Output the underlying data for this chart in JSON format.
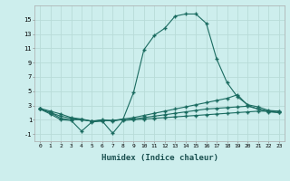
{
  "title": "",
  "xlabel": "Humidex (Indice chaleur)",
  "background_color": "#cdeeed",
  "grid_color": "#b8dbd8",
  "line_color": "#1a6b60",
  "xlim": [
    -0.5,
    23.5
  ],
  "ylim": [
    -2,
    17
  ],
  "xticks": [
    0,
    1,
    2,
    3,
    4,
    5,
    6,
    7,
    8,
    9,
    10,
    11,
    12,
    13,
    14,
    15,
    16,
    17,
    18,
    19,
    20,
    21,
    22,
    23
  ],
  "yticks": [
    -1,
    1,
    3,
    5,
    7,
    9,
    11,
    13,
    15
  ],
  "series1_x": [
    0,
    1,
    2,
    3,
    4,
    5,
    6,
    7,
    8,
    9,
    10,
    11,
    12,
    13,
    14,
    15,
    16,
    17,
    18,
    19,
    20,
    21,
    22,
    23
  ],
  "series1_y": [
    2.6,
    2.2,
    1.8,
    1.3,
    1.1,
    0.8,
    1.0,
    0.8,
    1.1,
    4.8,
    10.8,
    12.8,
    13.8,
    15.5,
    15.8,
    15.8,
    14.5,
    9.5,
    6.2,
    4.2,
    3.1,
    2.8,
    2.3,
    2.2
  ],
  "series2_x": [
    0,
    1,
    2,
    3,
    4,
    5,
    6,
    7,
    8,
    9,
    10,
    11,
    12,
    13,
    14,
    15,
    16,
    17,
    18,
    19,
    20,
    21,
    22,
    23
  ],
  "series2_y": [
    2.5,
    2.0,
    1.5,
    1.2,
    1.0,
    0.8,
    0.9,
    0.9,
    1.1,
    1.3,
    1.6,
    1.9,
    2.2,
    2.5,
    2.8,
    3.1,
    3.4,
    3.7,
    4.0,
    4.5,
    3.0,
    2.5,
    2.1,
    2.0
  ],
  "series3_x": [
    0,
    1,
    2,
    3,
    4,
    5,
    6,
    7,
    8,
    9,
    10,
    11,
    12,
    13,
    14,
    15,
    16,
    17,
    18,
    19,
    20,
    21,
    22,
    23
  ],
  "series3_y": [
    2.5,
    2.0,
    1.2,
    1.0,
    1.0,
    0.8,
    0.9,
    0.9,
    1.0,
    1.1,
    1.3,
    1.5,
    1.7,
    1.9,
    2.1,
    2.3,
    2.5,
    2.6,
    2.7,
    2.8,
    2.9,
    2.5,
    2.2,
    2.0
  ],
  "series4_x": [
    0,
    1,
    2,
    3,
    4,
    5,
    6,
    7,
    8,
    9,
    10,
    11,
    12,
    13,
    14,
    15,
    16,
    17,
    18,
    19,
    20,
    21,
    22,
    23
  ],
  "series4_y": [
    2.5,
    1.8,
    1.0,
    0.9,
    -0.6,
    0.7,
    0.8,
    -0.9,
    0.9,
    1.0,
    1.1,
    1.2,
    1.3,
    1.4,
    1.5,
    1.6,
    1.7,
    1.8,
    1.9,
    2.0,
    2.1,
    2.2,
    2.2,
    2.2
  ]
}
